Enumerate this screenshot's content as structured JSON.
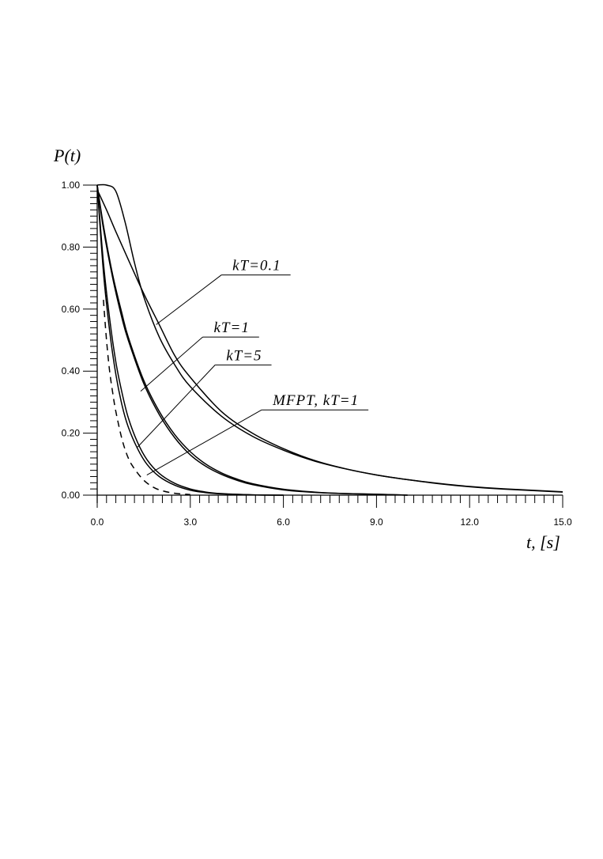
{
  "chart_data": {
    "type": "line",
    "ylabel": "P(t)",
    "xlabel": "t, [s]",
    "xlim": [
      0,
      15
    ],
    "ylim": [
      0,
      1
    ],
    "x_major_ticks": [
      0,
      3,
      6,
      9,
      12,
      15
    ],
    "x_tick_labels": [
      "0.0",
      "3.0",
      "6.0",
      "9.0",
      "12.0",
      "15.0"
    ],
    "y_major_ticks": [
      0,
      0.2,
      0.4,
      0.6,
      0.8,
      1.0
    ],
    "y_tick_labels": [
      "0.00",
      "0.20",
      "0.40",
      "0.60",
      "0.80",
      "1.00"
    ],
    "grid": false,
    "series": [
      {
        "style": "solid",
        "x": [
          0,
          0.3,
          0.6,
          0.9,
          1.2,
          1.5,
          2,
          2.5,
          3,
          4,
          5,
          6,
          7,
          8,
          9,
          10,
          11,
          12,
          13,
          15
        ],
        "y": [
          1.0,
          1.0,
          0.98,
          0.88,
          0.75,
          0.64,
          0.51,
          0.42,
          0.35,
          0.255,
          0.19,
          0.145,
          0.11,
          0.085,
          0.065,
          0.05,
          0.037,
          0.027,
          0.02,
          0.01
        ]
      },
      {
        "style": "solid",
        "x": [
          0,
          0.3,
          0.6,
          1,
          1.5,
          2,
          2.5,
          3,
          4,
          5,
          6,
          7,
          8,
          9,
          10,
          11,
          12,
          13,
          15
        ],
        "y": [
          0.985,
          0.92,
          0.85,
          0.76,
          0.65,
          0.55,
          0.45,
          0.38,
          0.27,
          0.2,
          0.15,
          0.112,
          0.085,
          0.065,
          0.05,
          0.038,
          0.028,
          0.021,
          0.011
        ]
      },
      {
        "style": "solid",
        "x": [
          0,
          0.2,
          0.5,
          0.8,
          1,
          1.5,
          2,
          2.5,
          3,
          3.5,
          4,
          4.5,
          5,
          6,
          7,
          8,
          9,
          10
        ],
        "y": [
          1.0,
          0.86,
          0.7,
          0.57,
          0.5,
          0.36,
          0.26,
          0.185,
          0.13,
          0.093,
          0.067,
          0.048,
          0.034,
          0.017,
          0.009,
          0.005,
          0.003,
          0.0
        ]
      },
      {
        "style": "solid",
        "x": [
          0,
          0.2,
          0.5,
          0.8,
          1,
          1.5,
          2,
          2.5,
          3,
          3.5,
          4,
          4.5,
          5,
          6,
          7,
          8,
          9,
          10
        ],
        "y": [
          1.0,
          0.87,
          0.71,
          0.585,
          0.51,
          0.37,
          0.27,
          0.195,
          0.14,
          0.1,
          0.072,
          0.052,
          0.037,
          0.019,
          0.01,
          0.005,
          0.003,
          0.0
        ]
      },
      {
        "style": "solid",
        "x": [
          0,
          0.2,
          0.4,
          0.6,
          0.8,
          1,
          1.3,
          1.6,
          2,
          2.5,
          3,
          3.5,
          4,
          5,
          6
        ],
        "y": [
          1.0,
          0.72,
          0.53,
          0.39,
          0.29,
          0.22,
          0.15,
          0.1,
          0.06,
          0.032,
          0.016,
          0.008,
          0.004,
          0.001,
          0.0
        ]
      },
      {
        "style": "solid",
        "x": [
          0,
          0.2,
          0.4,
          0.6,
          0.8,
          1,
          1.3,
          1.6,
          2,
          2.5,
          3,
          3.5,
          4,
          5,
          6
        ],
        "y": [
          1.0,
          0.75,
          0.57,
          0.43,
          0.33,
          0.25,
          0.17,
          0.115,
          0.07,
          0.038,
          0.02,
          0.01,
          0.005,
          0.001,
          0.0
        ]
      },
      {
        "style": "dashed",
        "x": [
          0.2,
          0.3,
          0.4,
          0.5,
          0.6,
          0.8,
          1,
          1.2,
          1.5,
          1.8,
          2.1,
          2.5,
          3
        ],
        "y": [
          0.63,
          0.5,
          0.4,
          0.33,
          0.27,
          0.18,
          0.12,
          0.085,
          0.048,
          0.026,
          0.014,
          0.006,
          0.002
        ]
      }
    ],
    "annotations": [
      {
        "text": "kT=0.1",
        "label_x": 4.0,
        "label_y": 0.71,
        "target_x": 1.9,
        "target_y": 0.55
      },
      {
        "text": "kT=1",
        "label_x": 3.4,
        "label_y": 0.51,
        "target_x": 1.4,
        "target_y": 0.335
      },
      {
        "text": "kT=5",
        "label_x": 3.8,
        "label_y": 0.42,
        "target_x": 1.3,
        "target_y": 0.155
      },
      {
        "text": "MFPT, kT=1",
        "label_x": 5.3,
        "label_y": 0.275,
        "target_x": 1.6,
        "target_y": 0.065
      }
    ]
  }
}
